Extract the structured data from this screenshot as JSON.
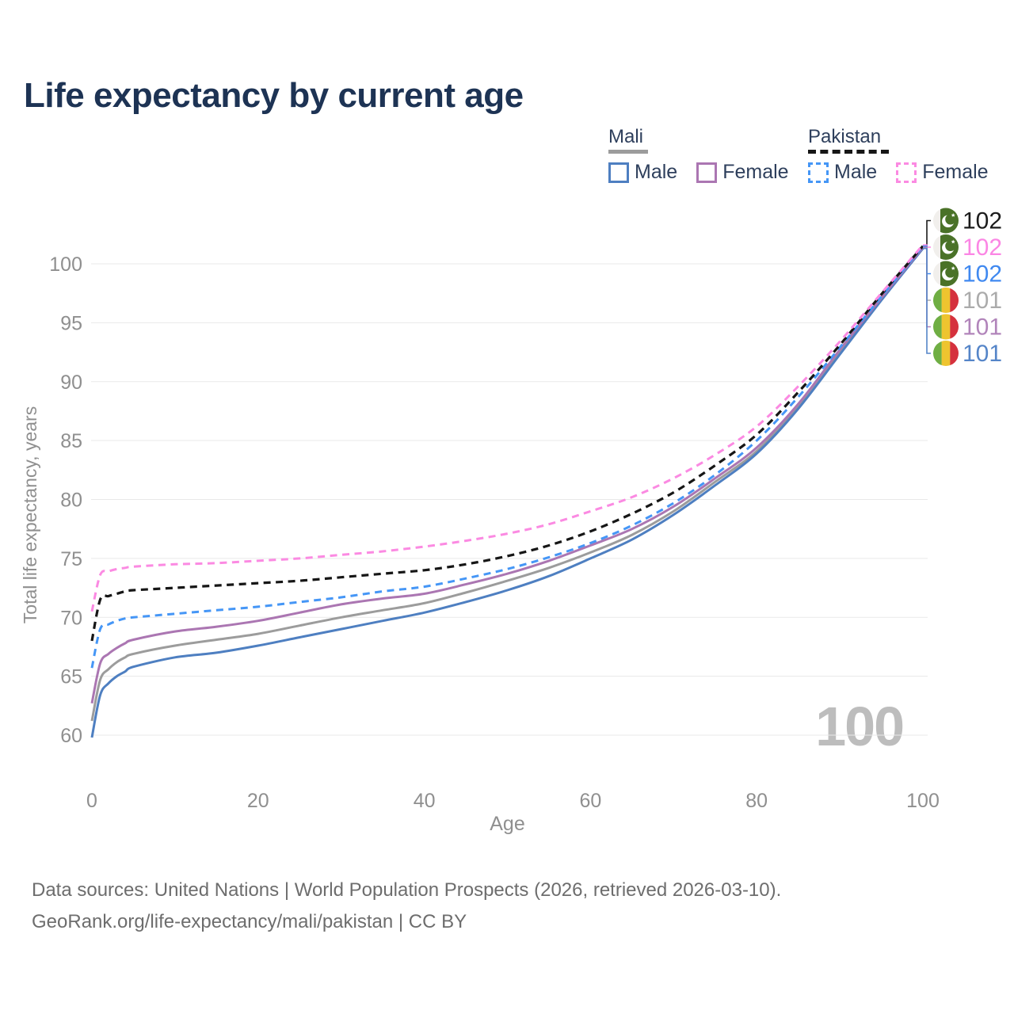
{
  "title": "Life expectancy by current age",
  "watermark": "100",
  "legend": {
    "mali": {
      "label": "Mali",
      "male": "Male",
      "female": "Female"
    },
    "pakistan": {
      "label": "Pakistan",
      "male": "Male",
      "female": "Female"
    }
  },
  "footer": {
    "line1": "Data sources: United Nations | World Population Prospects (2026, retrieved 2026-03-10).",
    "line2": "GeoRank.org/life-expectancy/mali/pakistan | CC BY"
  },
  "colors": {
    "title": "#1d3354",
    "legend_text": "#2e3f5c",
    "axis_text": "#8f8f8f",
    "gridline": "#e9e9e9",
    "watermark": "#bdbdbd",
    "footer_text": "#6d6d6d",
    "mali_male": "#4e7fc1",
    "mali_female": "#ab76b2",
    "mali_both": "#9c9c9c",
    "pakistan_male": "#4596f6",
    "pakistan_female": "#fb8ae2",
    "pakistan_both": "#161616",
    "flag_pakistan_green": "#4a7228",
    "flag_white": "#f1efec",
    "flag_mali_green": "#6fae43",
    "flag_mali_yellow": "#eec42f",
    "flag_mali_red": "#d5313d"
  },
  "chart_data": {
    "type": "line",
    "title": "Life expectancy by current age",
    "xlabel": "Age",
    "ylabel": "Total life expectancy, years",
    "xlim": [
      0,
      100
    ],
    "ylim": [
      58.5,
      103
    ],
    "x_ticks": [
      0,
      20,
      40,
      60,
      80,
      100
    ],
    "y_ticks": [
      60,
      65,
      70,
      75,
      80,
      85,
      90,
      95,
      100
    ],
    "grid": "horizontal-only",
    "legend_position": "top-right",
    "ages": [
      0,
      1,
      2,
      3,
      4,
      5,
      10,
      15,
      20,
      25,
      30,
      35,
      40,
      45,
      50,
      55,
      60,
      65,
      70,
      75,
      80,
      85,
      90,
      95,
      100
    ],
    "series": [
      {
        "id": "mali-both",
        "country": "Mali",
        "sex": "Both",
        "style": "solid",
        "color": "#9c9c9c",
        "width": 3,
        "values": [
          61.2,
          64.7,
          65.6,
          66.2,
          66.6,
          66.9,
          67.6,
          68.1,
          68.6,
          69.3,
          70.0,
          70.6,
          71.2,
          72.1,
          73.1,
          74.2,
          75.5,
          77.0,
          79.0,
          81.5,
          84.1,
          87.9,
          92.5,
          97.0,
          101.4
        ]
      },
      {
        "id": "mali-male",
        "country": "Mali",
        "sex": "Male",
        "style": "solid",
        "color": "#4e7fc1",
        "width": 3,
        "values": [
          59.8,
          63.4,
          64.4,
          65.0,
          65.4,
          65.8,
          66.6,
          67.0,
          67.6,
          68.3,
          69.0,
          69.7,
          70.4,
          71.3,
          72.3,
          73.5,
          75.0,
          76.6,
          78.7,
          81.2,
          83.9,
          87.7,
          92.3,
          96.9,
          101.3
        ]
      },
      {
        "id": "mali-female",
        "country": "Mali",
        "sex": "Female",
        "style": "solid",
        "color": "#ab76b2",
        "width": 3,
        "values": [
          62.7,
          66.1,
          66.9,
          67.4,
          67.8,
          68.1,
          68.8,
          69.2,
          69.7,
          70.4,
          71.1,
          71.6,
          72.0,
          72.8,
          73.7,
          74.8,
          76.1,
          77.5,
          79.4,
          81.8,
          84.4,
          88.1,
          92.7,
          97.1,
          101.4
        ]
      },
      {
        "id": "pakistan-male",
        "country": "Pakistan",
        "sex": "Male",
        "style": "dashed",
        "color": "#4596f6",
        "width": 3,
        "values": [
          65.7,
          69.0,
          69.4,
          69.7,
          69.9,
          70.0,
          70.3,
          70.6,
          70.9,
          71.3,
          71.7,
          72.2,
          72.6,
          73.3,
          74.1,
          75.1,
          76.3,
          77.8,
          79.7,
          82.1,
          85.0,
          88.7,
          92.9,
          97.2,
          101.5
        ]
      },
      {
        "id": "pakistan-both",
        "country": "Pakistan",
        "sex": "Both",
        "style": "dashed",
        "color": "#161616",
        "width": 3.2,
        "values": [
          68.0,
          71.5,
          71.8,
          72.0,
          72.2,
          72.3,
          72.5,
          72.7,
          72.9,
          73.1,
          73.4,
          73.7,
          74.0,
          74.5,
          75.2,
          76.1,
          77.3,
          78.8,
          80.6,
          82.9,
          85.5,
          89.1,
          93.1,
          97.4,
          101.5
        ]
      },
      {
        "id": "pakistan-female",
        "country": "Pakistan",
        "sex": "Female",
        "style": "dashed",
        "color": "#fb8ae2",
        "width": 3,
        "values": [
          70.5,
          73.6,
          73.9,
          74.1,
          74.2,
          74.3,
          74.5,
          74.6,
          74.8,
          75.0,
          75.3,
          75.6,
          76.0,
          76.5,
          77.1,
          77.9,
          79.0,
          80.2,
          81.8,
          83.8,
          86.2,
          89.6,
          93.4,
          97.5,
          101.6
        ]
      }
    ],
    "end_labels": [
      {
        "series": "pakistan-both",
        "flag": "pakistan",
        "value": "102",
        "color": "#1c1c1c"
      },
      {
        "series": "pakistan-female",
        "flag": "pakistan",
        "value": "102",
        "color": "#fb86e4"
      },
      {
        "series": "pakistan-male",
        "flag": "pakistan",
        "value": "102",
        "color": "#4089f0"
      },
      {
        "series": "mali-both",
        "flag": "mali",
        "value": "101",
        "color": "#ababab"
      },
      {
        "series": "mali-female",
        "flag": "mali",
        "value": "101",
        "color": "#b184ba"
      },
      {
        "series": "mali-male",
        "flag": "mali",
        "value": "101",
        "color": "#5585c8"
      }
    ]
  }
}
